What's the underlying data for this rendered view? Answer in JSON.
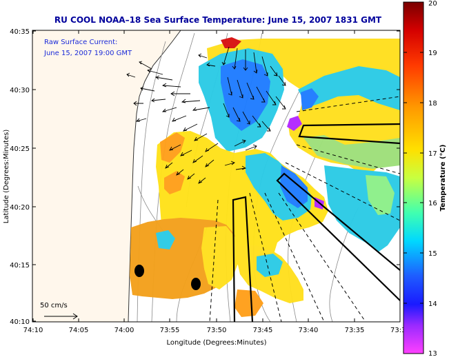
{
  "title": "RU COOL   NOAA–18  Sea Surface Temperature:  June 15, 2007 1831 GMT",
  "annotation": {
    "line1": "Raw Surface Current:",
    "line2": "June 15, 2007 19:00 GMT"
  },
  "scale_label": "50 cm/s",
  "axes": {
    "xlabel": "Longitude (Degrees:Minutes)",
    "ylabel": "Latitude (Degrees:Minutes)",
    "x_ticks": [
      "74:10",
      "74:05",
      "74:00",
      "73:55",
      "73:50",
      "73:45",
      "73:40",
      "73:35",
      "73:3"
    ],
    "y_ticks": [
      "40:35",
      "40:30",
      "40:25",
      "40:20",
      "40:15",
      "40:10"
    ]
  },
  "colorbar": {
    "label": "Temperature (°C)",
    "ticks": [
      "20",
      "19",
      "18",
      "17",
      "16",
      "15",
      "14",
      "13"
    ],
    "min": 13,
    "max": 20
  },
  "colors": {
    "title": "#00009c",
    "land": "#fff7ec",
    "warm": "#f3a11c",
    "mid": "#ffe21a",
    "cool": "#22c6e8",
    "cold": "#2a3cff"
  }
}
